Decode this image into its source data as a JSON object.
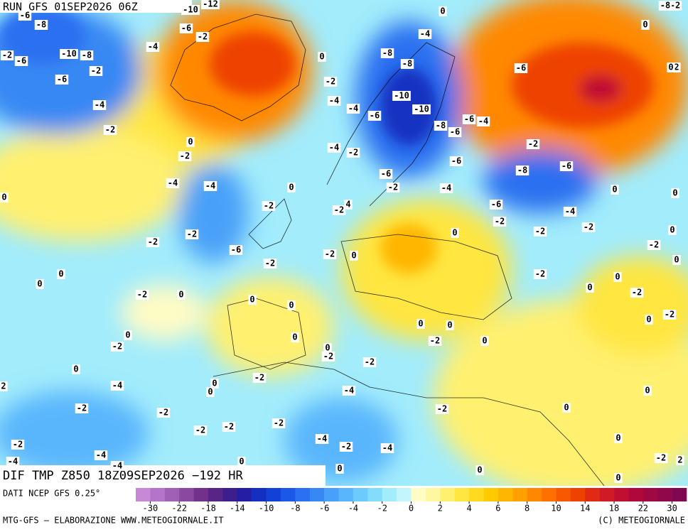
{
  "header": {
    "run": "RUN GFS 01SEP2026 06Z"
  },
  "map": {
    "title": "DIF TMP Z850 18Z09SEP2026 −192 HR",
    "contour_labels": [
      -6,
      -8,
      -2,
      -6,
      -10,
      -8,
      -2,
      -6,
      -4,
      -2,
      -4,
      -6,
      -2,
      -10,
      -12,
      0,
      -2,
      -4,
      -4,
      -6,
      -8,
      -8,
      -10,
      -10,
      -4,
      0,
      -6,
      -4,
      -8,
      -6,
      -2,
      -8,
      -6,
      -6,
      -4,
      -6,
      -2,
      -4,
      -2,
      0,
      -2,
      -4,
      -4,
      0,
      -2,
      -2,
      4,
      -6,
      -2,
      -4,
      -2,
      -2,
      0,
      0,
      0,
      -2,
      0,
      0,
      -2,
      -2,
      -6,
      -2,
      -2,
      0,
      0,
      -2,
      0,
      0,
      -2,
      0,
      0,
      -2,
      0,
      0,
      0,
      0,
      0,
      -2,
      0,
      0,
      -2,
      -2,
      0,
      0,
      -2,
      0,
      0,
      -2,
      -2,
      0,
      0,
      -4,
      2,
      -2,
      -2,
      -2,
      -2,
      -2,
      -4,
      -2,
      0,
      0,
      -4,
      -2,
      -4,
      0,
      -2,
      -4,
      -4,
      -4,
      0,
      0,
      0,
      0,
      -2,
      2,
      0,
      -2,
      -8,
      2,
      0,
      -6
    ]
  },
  "legend": {
    "source": "DATI NCEP GFS 0.25°",
    "colors": [
      "#c888d8",
      "#b474c8",
      "#a060b4",
      "#8a489e",
      "#72328c",
      "#582486",
      "#3c1e8c",
      "#241ea4",
      "#1430c0",
      "#1042d8",
      "#1c58e8",
      "#2a70f0",
      "#3888f4",
      "#48a0f8",
      "#5ab6fc",
      "#6ccafc",
      "#84dcfc",
      "#a2ecfc",
      "#c2f6fc",
      "#fffcc4",
      "#fff8a0",
      "#fff070",
      "#ffe640",
      "#ffda20",
      "#ffca00",
      "#ffb600",
      "#ffa000",
      "#ff8800",
      "#ff7000",
      "#f85800",
      "#ee4200",
      "#e02a16",
      "#d01a26",
      "#c01032",
      "#b0083a",
      "#a00842",
      "#90084a",
      "#800852"
    ],
    "ticks": [
      -30,
      -22,
      -18,
      -14,
      -10,
      -8,
      -6,
      -4,
      -2,
      0,
      2,
      4,
      6,
      8,
      10,
      14,
      18,
      22,
      30
    ]
  },
  "footer": {
    "left": "MTG-GFS — ELABORAZIONE WWW.METEOGIORNALE.IT",
    "right": "(C) METEOGIORNALE"
  }
}
